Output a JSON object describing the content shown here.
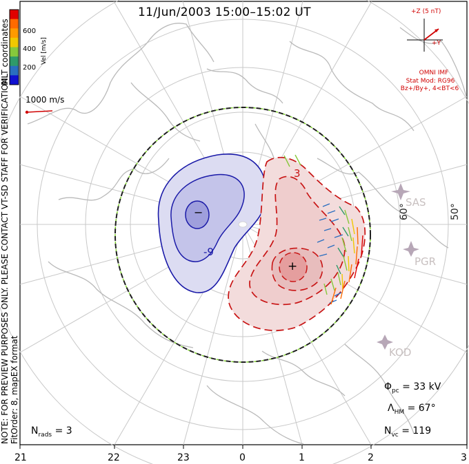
{
  "title": "11/Jun/2003 15:00–15:02 UT",
  "side_labels": {
    "coordinates": "MLT coordinates",
    "preview_note": "NOTE: FOR PREVIEW PURPOSES ONLY. PLEASE CONTACT VT-SD STAFF FOR VERIFICATION.",
    "fit_order": "FitOrder: 8, mapEX format"
  },
  "colorbar": {
    "label": "Vel [m/s]",
    "ticks": [
      "600",
      "400",
      "200"
    ],
    "colors": [
      "#e00000",
      "#ff6a00",
      "#ff9a00",
      "#f0c800",
      "#86c83c",
      "#2f9a6a",
      "#2a6ec0",
      "#1010d0"
    ]
  },
  "scale_vector": {
    "label": "1000 m/s",
    "color": "#d00000"
  },
  "imf": {
    "axis_z": "+Z (5 nT)",
    "axis_y": "+Y",
    "source": "OMNI IMF",
    "stat_mod": "Stat Mod: RG96",
    "condition": "Bz+/By+, 4<BT<6"
  },
  "stats": {
    "phi_pc": "= 33 kV",
    "lambda_hm": "= 67°",
    "n_vc": "= 119",
    "n_rads": "= 3"
  },
  "mlt_ticks": [
    "21",
    "22",
    "23",
    "0",
    "1",
    "2",
    "3"
  ],
  "radars": [
    "SAS",
    "PGR",
    "KOD"
  ],
  "latitude_labels": [
    "60°",
    "50°"
  ],
  "contours": {
    "negative_color": "#1a1aa8",
    "positive_color": "#c81414",
    "min_marker": "−",
    "max_marker": "+",
    "neg_label": "-9",
    "pos_label": "3"
  },
  "hm_boundary_color": "#1e1e1e"
}
